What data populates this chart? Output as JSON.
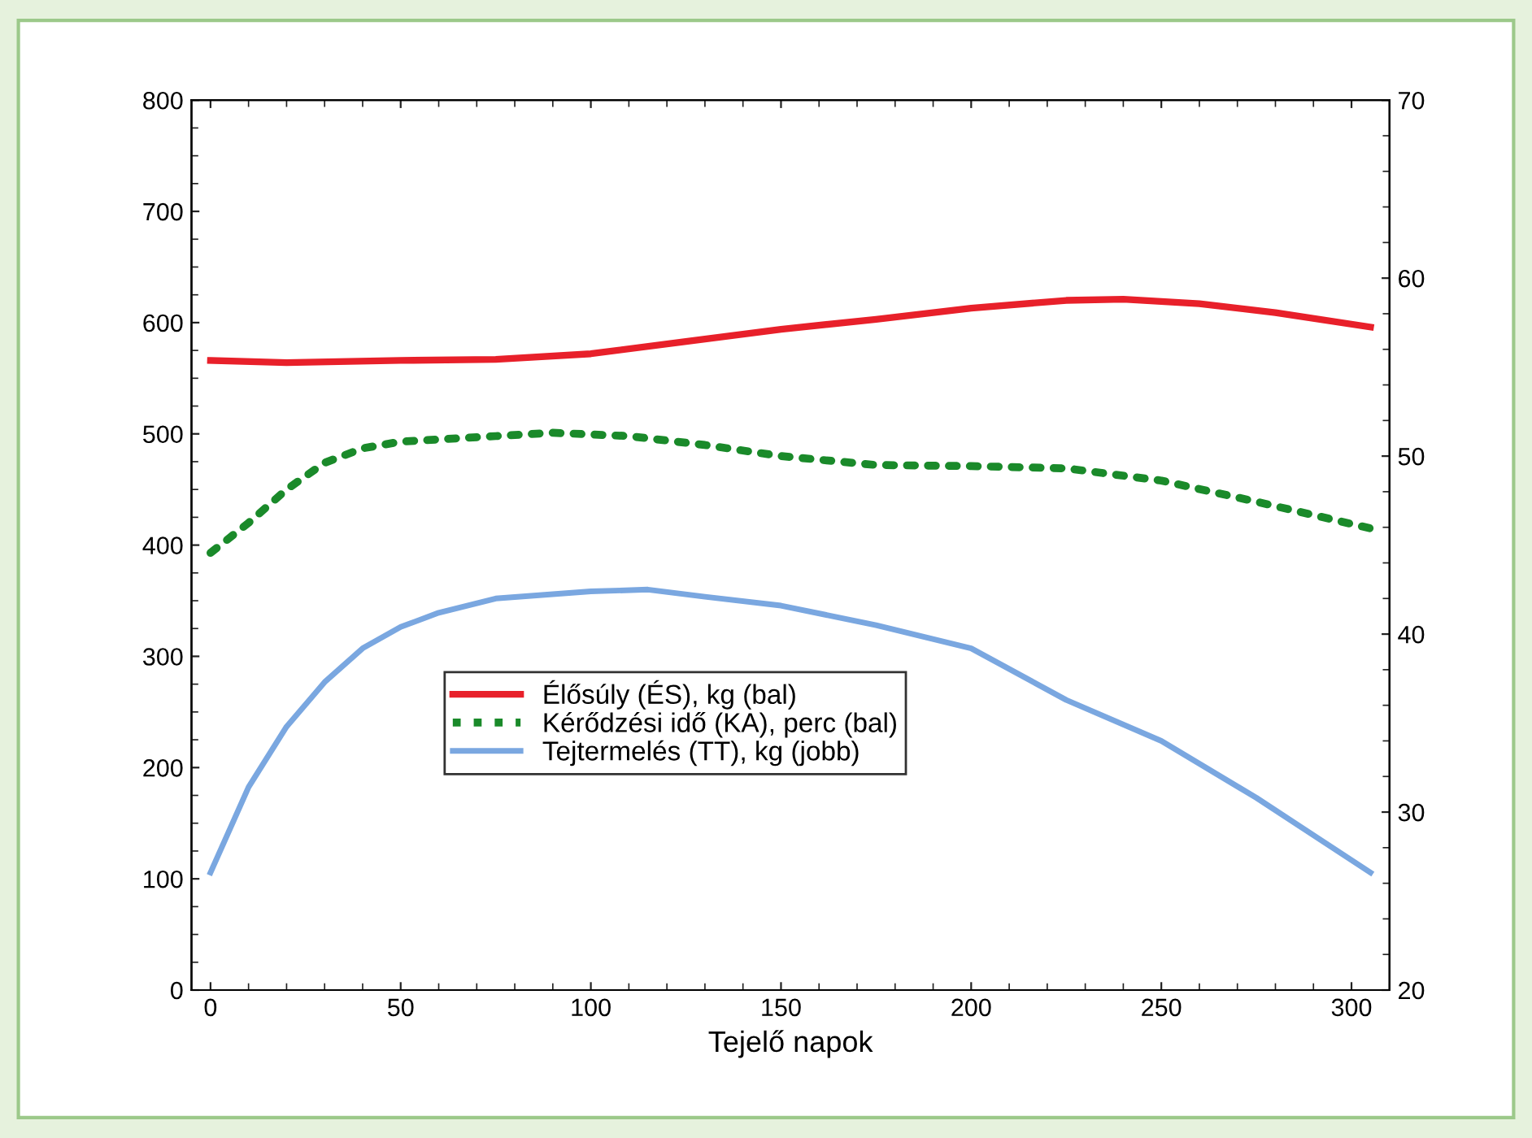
{
  "chart_data": {
    "type": "line",
    "xlabel": "Tejelő napok",
    "series": [
      {
        "name": "Élősúly (ÉS), kg (bal)",
        "color": "#e8202a",
        "line_style": "solid",
        "x": [
          0,
          20,
          50,
          75,
          100,
          125,
          150,
          175,
          200,
          225,
          240,
          260,
          280,
          305
        ],
        "values": [
          566,
          564,
          566,
          567,
          572,
          583,
          594,
          603,
          613,
          620,
          621,
          617,
          609,
          596
        ]
      },
      {
        "name": "Kérődzési idő (KA), perc (bal)",
        "color": "#1a8a2a",
        "line_style": "dotted",
        "x": [
          0,
          10,
          20,
          30,
          40,
          50,
          75,
          90,
          110,
          130,
          150,
          175,
          200,
          225,
          250,
          275,
          305
        ],
        "values": [
          393,
          420,
          450,
          474,
          487,
          493,
          498,
          501,
          498,
          490,
          480,
          472,
          471,
          469,
          458,
          439,
          415
        ]
      },
      {
        "name": "Tejtermelés (TT), kg (jobb)",
        "color": "#7aa7e0",
        "line_style": "solid",
        "axis": "y2",
        "x": [
          0,
          10,
          20,
          30,
          40,
          50,
          60,
          75,
          100,
          115,
          130,
          150,
          175,
          200,
          225,
          250,
          275,
          305
        ],
        "values": [
          26.6,
          31.4,
          34.8,
          37.3,
          39.2,
          40.4,
          41.2,
          42.0,
          42.4,
          42.5,
          42.1,
          41.6,
          40.5,
          39.2,
          36.3,
          34.0,
          30.8,
          26.6
        ]
      }
    ],
    "xlim": [
      -5,
      310
    ],
    "xticks": [
      0,
      50,
      100,
      150,
      200,
      250,
      300
    ],
    "ylim": [
      0,
      800
    ],
    "yticks": [
      0,
      100,
      200,
      300,
      400,
      500,
      600,
      700,
      800
    ],
    "y2lim": [
      20,
      70
    ],
    "y2ticks": [
      20,
      30,
      40,
      50,
      60,
      70
    ],
    "grid": false,
    "legend": "left",
    "marker": "none"
  }
}
